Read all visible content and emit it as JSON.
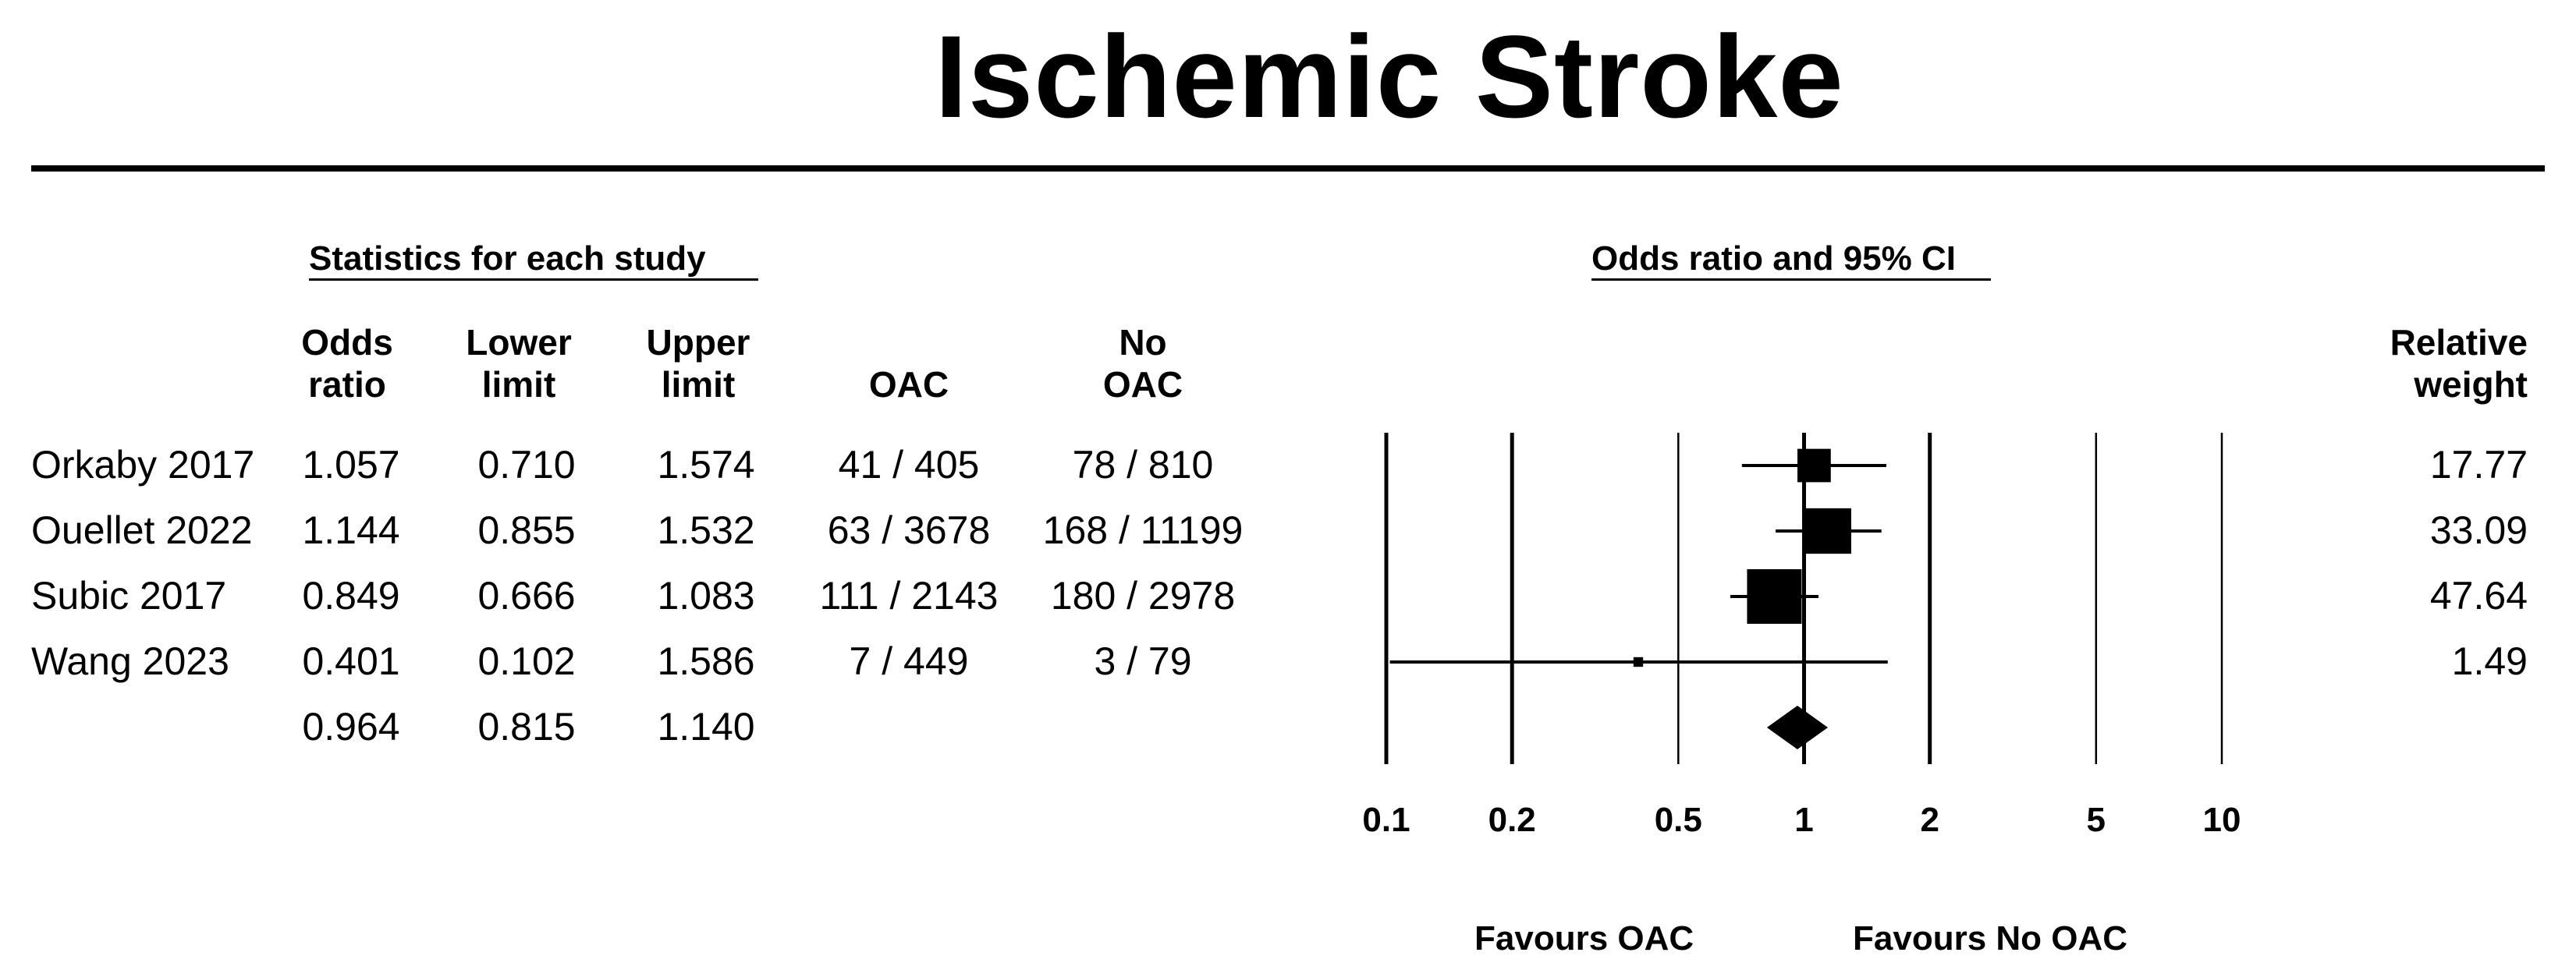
{
  "chart_data": {
    "type": "forest",
    "title": "Ischemic Stroke",
    "left_section_title": "Statistics for each study",
    "right_section_title": "Odds ratio and 95% CI",
    "columns": {
      "or": [
        "Odds",
        "ratio"
      ],
      "lower": [
        "Lower",
        "limit"
      ],
      "upper": [
        "Upper",
        "limit"
      ],
      "oac": [
        "",
        "OAC"
      ],
      "no_oac": [
        "No",
        "OAC"
      ],
      "weight": [
        "Relative",
        "weight"
      ]
    },
    "studies": [
      {
        "name": "Orkaby 2017",
        "or": "1.057",
        "lower": "0.710",
        "upper": "1.574",
        "oac": "41 / 405",
        "no_oac": "78 / 810",
        "weight": "17.77",
        "or_v": 1.057,
        "lo_v": 0.71,
        "hi_v": 1.574,
        "w_v": 17.77
      },
      {
        "name": "Ouellet 2022",
        "or": "1.144",
        "lower": "0.855",
        "upper": "1.532",
        "oac": "63 / 3678",
        "no_oac": "168 / 11199",
        "weight": "33.09",
        "or_v": 1.144,
        "lo_v": 0.855,
        "hi_v": 1.532,
        "w_v": 33.09
      },
      {
        "name": "Subic 2017",
        "or": "0.849",
        "lower": "0.666",
        "upper": "1.083",
        "oac": "111 / 2143",
        "no_oac": "180 / 2978",
        "weight": "47.64",
        "or_v": 0.849,
        "lo_v": 0.666,
        "hi_v": 1.083,
        "w_v": 47.64
      },
      {
        "name": "Wang 2023",
        "or": "0.401",
        "lower": "0.102",
        "upper": "1.586",
        "oac": "7 / 449",
        "no_oac": "3 / 79",
        "weight": "1.49",
        "or_v": 0.401,
        "lo_v": 0.102,
        "hi_v": 1.586,
        "w_v": 1.49
      }
    ],
    "pooled": {
      "or": "0.964",
      "lower": "0.815",
      "upper": "1.140",
      "or_v": 0.964,
      "lo_v": 0.815,
      "hi_v": 1.14
    },
    "x_scale": "log",
    "xlim": [
      0.1,
      10
    ],
    "xticks": [
      0.1,
      0.2,
      0.5,
      1,
      2,
      5,
      10
    ],
    "xtick_labels": [
      "0.1",
      "0.2",
      "0.5",
      "1",
      "2",
      "5",
      "10"
    ],
    "favours_left": "Favours OAC",
    "favours_right": "Favours No OAC"
  }
}
